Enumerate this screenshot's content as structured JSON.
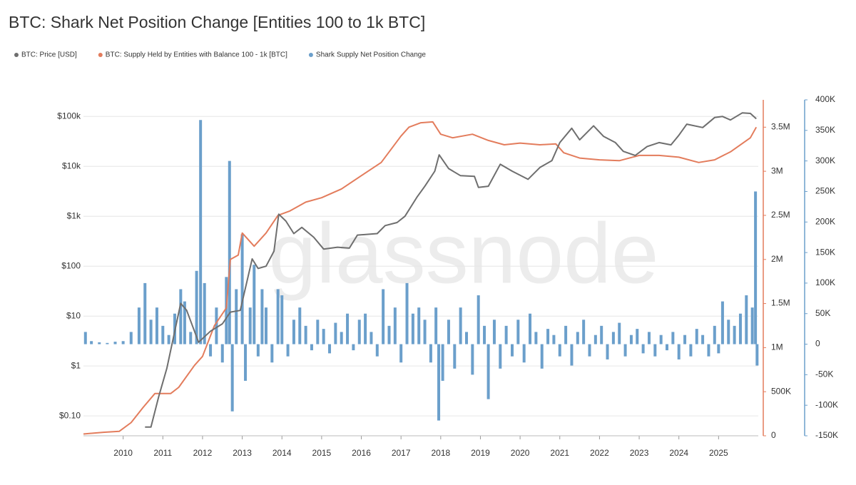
{
  "chart_data": {
    "type": "line",
    "title": "BTC: Shark Net Position Change [Entities 100 to 1k BTC]",
    "watermark": "glassnode",
    "xlim": [
      2009,
      2026
    ],
    "xticks": [
      2010,
      2011,
      2012,
      2013,
      2014,
      2015,
      2016,
      2017,
      2018,
      2019,
      2020,
      2021,
      2022,
      2023,
      2024,
      2025
    ],
    "yscale": "log",
    "ylim": [
      0.04,
      215000
    ],
    "yticks": [
      {
        "value": 100000,
        "label": "$100k"
      },
      {
        "value": 10000,
        "label": "$10k"
      },
      {
        "value": 1000,
        "label": "$1k"
      },
      {
        "value": 100,
        "label": "$100"
      },
      {
        "value": 10,
        "label": "$10"
      },
      {
        "value": 1,
        "label": "$1"
      },
      {
        "value": 0.1,
        "label": "$0.10"
      }
    ],
    "y2lim": [
      0,
      3810000
    ],
    "y2ticks": [
      0,
      {
        "value": 500000,
        "label": "500K"
      },
      {
        "value": 1000000,
        "label": "1M"
      },
      {
        "value": 1500000,
        "label": "1.5M"
      },
      {
        "value": 2000000,
        "label": "2M"
      },
      {
        "value": 2500000,
        "label": "2.5M"
      },
      {
        "value": 3000000,
        "label": "3M"
      },
      {
        "value": 3500000,
        "label": "3.5M"
      }
    ],
    "y3lim": [
      -150000,
      400000
    ],
    "y3ticks": [
      {
        "value": 400000,
        "label": "400K"
      },
      {
        "value": 350000,
        "label": "350K"
      },
      {
        "value": 300000,
        "label": "300K"
      },
      {
        "value": 250000,
        "label": "250K"
      },
      {
        "value": 200000,
        "label": "200K"
      },
      {
        "value": 150000,
        "label": "150K"
      },
      {
        "value": 100000,
        "label": "100K"
      },
      {
        "value": 50000,
        "label": "50K"
      },
      0,
      {
        "value": -50000,
        "label": "-50K"
      },
      {
        "value": -100000,
        "label": "-100K"
      },
      {
        "value": -150000,
        "label": "-150K"
      }
    ],
    "grid": true,
    "series": [
      {
        "name": "Shark Supply Net Position Change",
        "type": "bar",
        "axis": "y3",
        "color": "#6b9fcb",
        "x": [
          2009.05,
          2009.2,
          2009.4,
          2009.6,
          2009.8,
          2010.0,
          2010.2,
          2010.4,
          2010.55,
          2010.7,
          2010.85,
          2011.0,
          2011.15,
          2011.3,
          2011.45,
          2011.55,
          2011.7,
          2011.85,
          2011.95,
          2012.05,
          2012.2,
          2012.35,
          2012.5,
          2012.6,
          2012.68,
          2012.75,
          2012.85,
          2013.0,
          2013.08,
          2013.2,
          2013.3,
          2013.4,
          2013.5,
          2013.6,
          2013.75,
          2013.9,
          2014.0,
          2014.15,
          2014.3,
          2014.45,
          2014.6,
          2014.75,
          2014.9,
          2015.05,
          2015.2,
          2015.35,
          2015.5,
          2015.65,
          2015.8,
          2015.95,
          2016.1,
          2016.25,
          2016.4,
          2016.55,
          2016.7,
          2016.85,
          2017.0,
          2017.15,
          2017.3,
          2017.45,
          2017.6,
          2017.75,
          2017.88,
          2017.95,
          2018.05,
          2018.2,
          2018.35,
          2018.5,
          2018.65,
          2018.8,
          2018.95,
          2019.1,
          2019.2,
          2019.35,
          2019.5,
          2019.65,
          2019.8,
          2019.95,
          2020.1,
          2020.25,
          2020.4,
          2020.55,
          2020.7,
          2020.85,
          2021.0,
          2021.15,
          2021.3,
          2021.45,
          2021.6,
          2021.75,
          2021.9,
          2022.05,
          2022.2,
          2022.35,
          2022.5,
          2022.65,
          2022.8,
          2022.95,
          2023.1,
          2023.25,
          2023.4,
          2023.55,
          2023.7,
          2023.85,
          2024.0,
          2024.15,
          2024.3,
          2024.45,
          2024.6,
          2024.75,
          2024.9,
          2025.0,
          2025.1,
          2025.25,
          2025.4,
          2025.55,
          2025.7,
          2025.85,
          2025.93,
          2025.97
        ],
        "values": [
          20000,
          5000,
          3000,
          2000,
          4000,
          5000,
          20000,
          60000,
          100000,
          40000,
          60000,
          30000,
          15000,
          50000,
          90000,
          70000,
          20000,
          120000,
          367000,
          100000,
          -20000,
          60000,
          -30000,
          110000,
          300000,
          -110000,
          90000,
          180000,
          -60000,
          60000,
          130000,
          -20000,
          90000,
          60000,
          -30000,
          90000,
          80000,
          -20000,
          40000,
          60000,
          30000,
          -10000,
          40000,
          25000,
          -15000,
          35000,
          20000,
          50000,
          -10000,
          40000,
          50000,
          20000,
          -20000,
          90000,
          30000,
          60000,
          -30000,
          100000,
          50000,
          60000,
          40000,
          -30000,
          60000,
          -125000,
          -60000,
          40000,
          -40000,
          60000,
          20000,
          -50000,
          80000,
          30000,
          -90000,
          40000,
          -40000,
          30000,
          -20000,
          40000,
          -30000,
          50000,
          20000,
          -40000,
          25000,
          15000,
          -20000,
          30000,
          -35000,
          20000,
          40000,
          -20000,
          15000,
          30000,
          -25000,
          20000,
          35000,
          -20000,
          15000,
          25000,
          -15000,
          20000,
          -20000,
          15000,
          -10000,
          20000,
          -25000,
          15000,
          -20000,
          25000,
          15000,
          -20000,
          30000,
          -15000,
          70000,
          40000,
          30000,
          50000,
          80000,
          60000,
          250000,
          -35000
        ]
      },
      {
        "name": "BTC: Supply Held by Entities with Balance 100 - 1k [BTC]",
        "type": "line",
        "axis": "y2",
        "color": "#e37c5c",
        "x": [
          2009.0,
          2009.5,
          2009.9,
          2010.2,
          2010.5,
          2010.8,
          2011.2,
          2011.4,
          2011.8,
          2012.0,
          2012.3,
          2012.6,
          2012.7,
          2012.9,
          2013.0,
          2013.3,
          2013.6,
          2013.9,
          2014.2,
          2014.6,
          2015.0,
          2015.5,
          2016.0,
          2016.5,
          2017.0,
          2017.2,
          2017.5,
          2017.8,
          2018.0,
          2018.3,
          2018.8,
          2019.2,
          2019.6,
          2020.0,
          2020.5,
          2020.9,
          2021.1,
          2021.5,
          2022.0,
          2022.5,
          2023.0,
          2023.5,
          2024.0,
          2024.5,
          2024.9,
          2025.3,
          2025.8,
          2025.95
        ],
        "values": [
          20000,
          40000,
          50000,
          150000,
          320000,
          480000,
          480000,
          550000,
          800000,
          900000,
          1250000,
          1450000,
          2000000,
          2050000,
          2300000,
          2150000,
          2300000,
          2500000,
          2550000,
          2650000,
          2700000,
          2800000,
          2950000,
          3100000,
          3400000,
          3500000,
          3550000,
          3560000,
          3420000,
          3380000,
          3420000,
          3350000,
          3300000,
          3320000,
          3300000,
          3310000,
          3210000,
          3150000,
          3130000,
          3120000,
          3180000,
          3180000,
          3160000,
          3100000,
          3130000,
          3220000,
          3380000,
          3500000
        ]
      },
      {
        "name": "BTC: Price [USD]",
        "type": "line",
        "axis": "y",
        "color": "#6e6e6e",
        "x": [
          2010.55,
          2010.7,
          2010.9,
          2011.1,
          2011.45,
          2011.6,
          2011.9,
          2012.2,
          2012.5,
          2012.7,
          2012.95,
          2013.25,
          2013.4,
          2013.6,
          2013.8,
          2013.92,
          2014.1,
          2014.3,
          2014.5,
          2014.8,
          2015.05,
          2015.4,
          2015.7,
          2015.9,
          2016.4,
          2016.6,
          2016.9,
          2017.1,
          2017.4,
          2017.6,
          2017.85,
          2017.96,
          2018.2,
          2018.5,
          2018.85,
          2018.95,
          2019.2,
          2019.5,
          2019.8,
          2020.2,
          2020.5,
          2020.8,
          2021.0,
          2021.3,
          2021.5,
          2021.85,
          2022.1,
          2022.4,
          2022.6,
          2022.9,
          2023.2,
          2023.5,
          2023.8,
          2024.0,
          2024.2,
          2024.6,
          2024.9,
          2025.1,
          2025.3,
          2025.6,
          2025.8,
          2025.95
        ],
        "values": [
          0.06,
          0.06,
          0.25,
          0.9,
          18,
          13,
          3,
          5,
          7,
          12,
          13,
          140,
          90,
          100,
          200,
          1100,
          800,
          450,
          600,
          380,
          220,
          240,
          230,
          420,
          450,
          650,
          750,
          1000,
          2400,
          4000,
          8000,
          17000,
          9000,
          6500,
          6300,
          3800,
          4000,
          11000,
          8000,
          5500,
          9500,
          13000,
          30000,
          58000,
          34000,
          65000,
          40000,
          30000,
          20000,
          16500,
          25000,
          30000,
          27000,
          42000,
          70000,
          60000,
          95000,
          100000,
          85000,
          118000,
          115000,
          90000
        ]
      }
    ]
  }
}
